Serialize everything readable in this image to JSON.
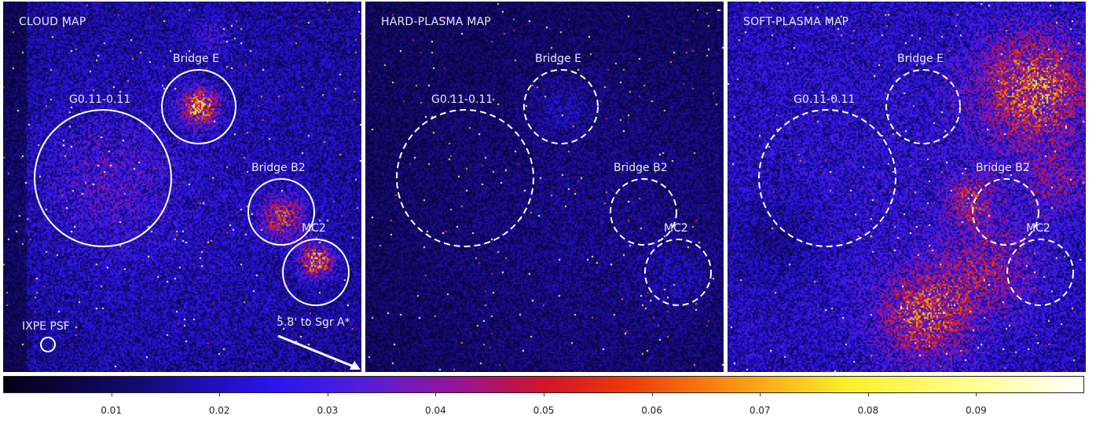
{
  "panels": [
    {
      "id": "cloud",
      "title": "CLOUD MAP",
      "circle_style": "solid",
      "regions": [
        {
          "name": "G0.11-0.11",
          "label": "G0.11-0.11"
        },
        {
          "name": "Bridge E",
          "label": "Bridge E"
        },
        {
          "name": "Bridge B2",
          "label": "Bridge B2"
        },
        {
          "name": "MC2",
          "label": "MC2"
        }
      ],
      "psf_label": "IXPE PSF",
      "arrow_label": "5.8' to Sgr A*"
    },
    {
      "id": "hard",
      "title": "HARD-PLASMA MAP",
      "circle_style": "dashed",
      "regions": [
        {
          "name": "G0.11-0.11",
          "label": "G0.11-0.11"
        },
        {
          "name": "Bridge E",
          "label": "Bridge E"
        },
        {
          "name": "Bridge B2",
          "label": "Bridge B2"
        },
        {
          "name": "MC2",
          "label": "MC2"
        }
      ]
    },
    {
      "id": "soft",
      "title": "SOFT-PLASMA MAP",
      "circle_style": "dashed",
      "regions": [
        {
          "name": "G0.11-0.11",
          "label": "G0.11-0.11"
        },
        {
          "name": "Bridge E",
          "label": "Bridge E"
        },
        {
          "name": "Bridge B2",
          "label": "Bridge B2"
        },
        {
          "name": "MC2",
          "label": "MC2"
        }
      ]
    }
  ],
  "colorbar": {
    "colormap": "gnuplot2-like",
    "min": 0.0,
    "max": 0.1,
    "ticks": [
      "0.01",
      "0.02",
      "0.03",
      "0.04",
      "0.05",
      "0.06",
      "0.07",
      "0.08",
      "0.09"
    ],
    "tick_values": [
      0.01,
      0.02,
      0.03,
      0.04,
      0.05,
      0.06,
      0.07,
      0.08,
      0.09
    ]
  },
  "colors": {
    "background": "#050014",
    "region_outline": "#ffffff",
    "label": "#e8e8f0"
  }
}
